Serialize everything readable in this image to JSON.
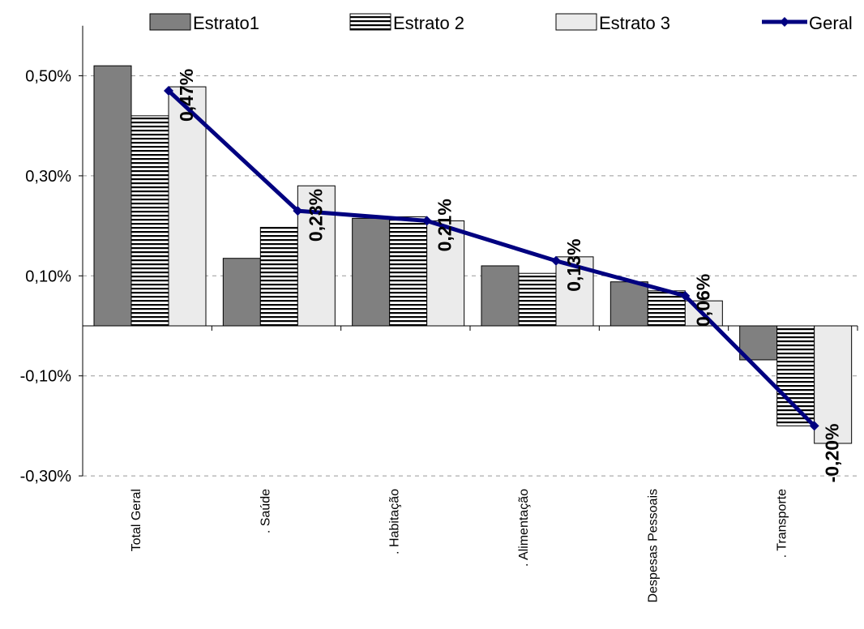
{
  "chart_data": {
    "type": "bar",
    "categories": [
      "Total Geral",
      ". Saúde",
      ". Habitação",
      ". Alimentação",
      "Despesas Pessoais",
      ". Transporte"
    ],
    "series": [
      {
        "name": "Estrato1",
        "values": [
          0.52,
          0.135,
          0.215,
          0.12,
          0.088,
          -0.068
        ]
      },
      {
        "name": "Estrato 2",
        "values": [
          0.42,
          0.197,
          0.218,
          0.105,
          0.07,
          -0.2
        ]
      },
      {
        "name": "Estrato 3",
        "values": [
          0.478,
          0.28,
          0.21,
          0.138,
          0.05,
          -0.235
        ]
      }
    ],
    "line_series": {
      "name": "Geral",
      "values": [
        0.47,
        0.23,
        0.21,
        0.13,
        0.06,
        -0.2
      ]
    },
    "data_labels": [
      "0,47%",
      "0,23%",
      "0,21%",
      "0,13%",
      "0,06%",
      "-0,20%"
    ],
    "y_ticks": [
      0.5,
      0.3,
      0.1,
      -0.1,
      -0.3
    ],
    "y_tick_labels": [
      "0,50%",
      "0,30%",
      "0,10%",
      "-0,10%",
      "-0,30%"
    ],
    "ylim": [
      -0.3,
      0.6
    ],
    "grid": "horizontal dashed",
    "legend_position": "top",
    "colors": {
      "estrato1": "#808080",
      "estrato2_fill": "#ffffff",
      "estrato2_stripe": "#000000",
      "estrato3": "#ebebeb",
      "geral_line": "#000080",
      "grid": "#999999"
    }
  }
}
